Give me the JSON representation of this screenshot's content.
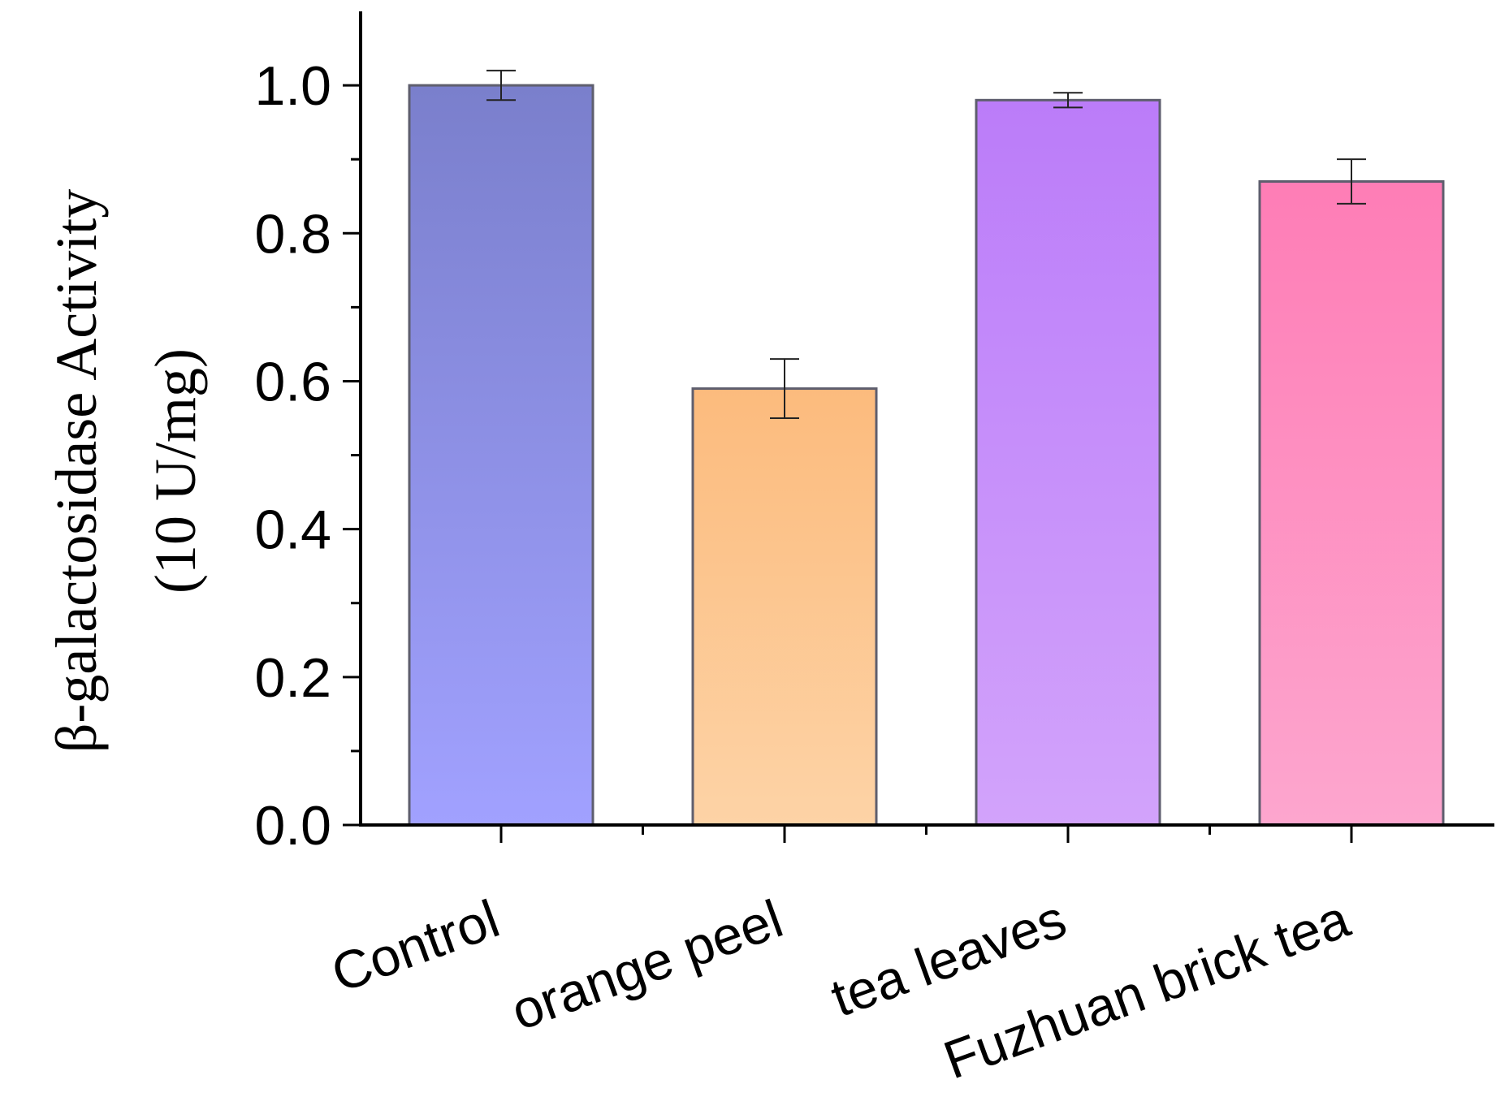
{
  "chart_data": {
    "type": "bar",
    "title": "",
    "xlabel": "",
    "ylabel_lines": [
      "β-galactosidase Activity",
      "(10 U/mg)"
    ],
    "categories": [
      "Control",
      "orange peel",
      "tea leaves",
      "Fuzhuan brick tea"
    ],
    "values": [
      1.0,
      0.59,
      0.98,
      0.87
    ],
    "errors": [
      0.02,
      0.04,
      0.01,
      0.03
    ],
    "ylim": [
      0,
      1.1
    ],
    "yticks": [
      "0.0",
      "0.2",
      "0.4",
      "0.6",
      "0.8",
      "1.0"
    ],
    "grid": false,
    "colors": [
      {
        "top": "#7a7fcc",
        "bottom": "#a1a1ff"
      },
      {
        "top": "#fcbb7d",
        "bottom": "#fdd3a6"
      },
      {
        "top": "#bb7cf9",
        "bottom": "#d2a3fb"
      },
      {
        "top": "#fe7db6",
        "bottom": "#fda6ce"
      }
    ]
  }
}
